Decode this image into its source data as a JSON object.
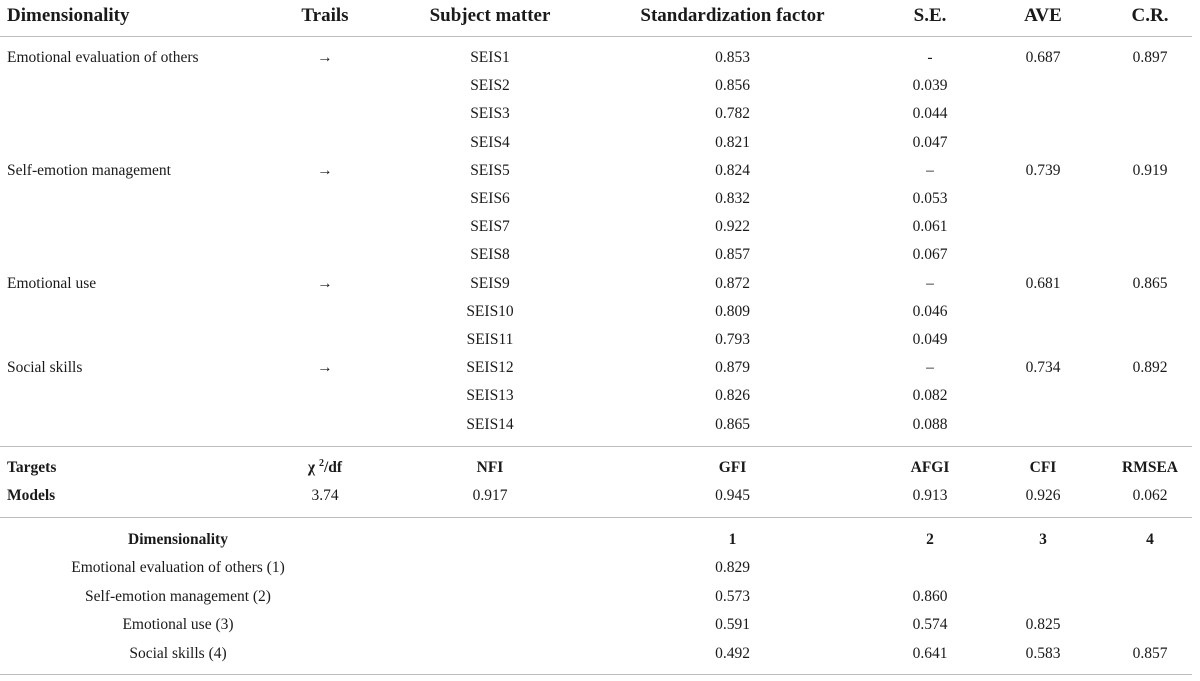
{
  "cfa_table": {
    "headers": [
      "Dimensionality",
      "Trails",
      "Subject matter",
      "Standardization factor",
      "S.E.",
      "AVE",
      "C.R."
    ],
    "rows": [
      {
        "dimension": "Emotional evaluation of others",
        "trail": "→",
        "item": "SEIS1",
        "factor": "0.853",
        "se": "-",
        "ave": "0.687",
        "cr": "0.897"
      },
      {
        "dimension": "",
        "trail": "",
        "item": "SEIS2",
        "factor": "0.856",
        "se": "0.039",
        "ave": "",
        "cr": ""
      },
      {
        "dimension": "",
        "trail": "",
        "item": "SEIS3",
        "factor": "0.782",
        "se": "0.044",
        "ave": "",
        "cr": ""
      },
      {
        "dimension": "",
        "trail": "",
        "item": "SEIS4",
        "factor": "0.821",
        "se": "0.047",
        "ave": "",
        "cr": ""
      },
      {
        "dimension": "Self-emotion management",
        "trail": "→",
        "item": "SEIS5",
        "factor": "0.824",
        "se": "–",
        "ave": "0.739",
        "cr": "0.919"
      },
      {
        "dimension": "",
        "trail": "",
        "item": "SEIS6",
        "factor": "0.832",
        "se": "0.053",
        "ave": "",
        "cr": ""
      },
      {
        "dimension": "",
        "trail": "",
        "item": "SEIS7",
        "factor": "0.922",
        "se": "0.061",
        "ave": "",
        "cr": ""
      },
      {
        "dimension": "",
        "trail": "",
        "item": "SEIS8",
        "factor": "0.857",
        "se": "0.067",
        "ave": "",
        "cr": ""
      },
      {
        "dimension": "Emotional use",
        "trail": "→",
        "item": "SEIS9",
        "factor": "0.872",
        "se": "–",
        "ave": "0.681",
        "cr": "0.865"
      },
      {
        "dimension": "",
        "trail": "",
        "item": "SEIS10",
        "factor": "0.809",
        "se": "0.046",
        "ave": "",
        "cr": ""
      },
      {
        "dimension": "",
        "trail": "",
        "item": "SEIS11",
        "factor": "0.793",
        "se": "0.049",
        "ave": "",
        "cr": ""
      },
      {
        "dimension": "Social skills",
        "trail": "→",
        "item": "SEIS12",
        "factor": "0.879",
        "se": "–",
        "ave": "0.734",
        "cr": "0.892"
      },
      {
        "dimension": "",
        "trail": "",
        "item": "SEIS13",
        "factor": "0.826",
        "se": "0.082",
        "ave": "",
        "cr": ""
      },
      {
        "dimension": "",
        "trail": "",
        "item": "SEIS14",
        "factor": "0.865",
        "se": "0.088",
        "ave": "",
        "cr": ""
      }
    ]
  },
  "fit_table": {
    "targets_label": "Targets",
    "chi_prefix": "χ ",
    "chi_sup": "2",
    "chi_suffix": "/df",
    "headers_rest": [
      "NFI",
      "GFI",
      "AFGI",
      "CFI",
      "RMSEA"
    ],
    "models_label": "Models",
    "values": [
      "3.74",
      "0.917",
      "0.945",
      "0.913",
      "0.926",
      "0.062"
    ]
  },
  "corr_table": {
    "header_label": "Dimensionality",
    "col_headers": [
      "1",
      "2",
      "3",
      "4"
    ],
    "rows": [
      {
        "label": "Emotional evaluation of others (1)",
        "values": [
          "0.829",
          "",
          "",
          ""
        ]
      },
      {
        "label": "Self-emotion management (2)",
        "values": [
          "0.573",
          "0.860",
          "",
          ""
        ]
      },
      {
        "label": "Emotional use (3)",
        "values": [
          "0.591",
          "0.574",
          "0.825",
          ""
        ]
      },
      {
        "label": "Social skills (4)",
        "values": [
          "0.492",
          "0.641",
          "0.583",
          "0.857"
        ]
      }
    ]
  }
}
